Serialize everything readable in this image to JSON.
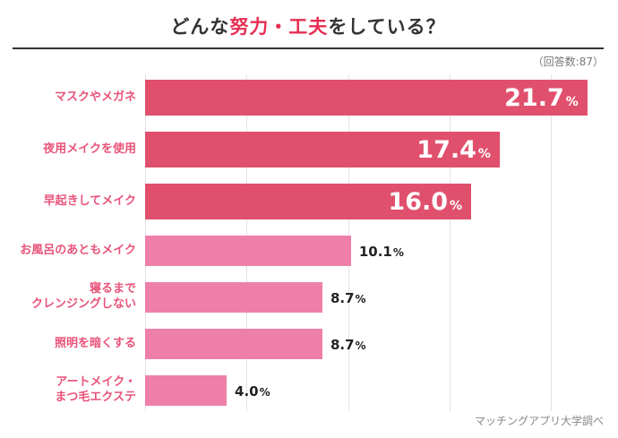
{
  "title": {
    "prefix": "どんな",
    "highlight": "努力・工夫",
    "suffix": "をしている？"
  },
  "response_count_label": "（回答数:87）",
  "source_label": "マッチングアプリ大学調べ",
  "colors": {
    "highlight_red": "#e62e52",
    "text_dark": "#333333",
    "divider": "#333333",
    "meta_gray": "#777777",
    "source_gray": "#888888",
    "bar_strong": "#e0506d",
    "bar_light": "#ee7fa8",
    "label_pink": "#e8537a",
    "grid": "#e3e3e3"
  },
  "chart_data": {
    "type": "bar",
    "orientation": "horizontal",
    "title": "どんな努力・工夫をしている？",
    "response_count": 87,
    "xlim": [
      0,
      22.5
    ],
    "gridlines": [
      0,
      5,
      10,
      15,
      20
    ],
    "grid": true,
    "legend": false,
    "categories": [
      "マスクやメガネ",
      "夜用メイクを使用",
      "早起きしてメイク",
      "お風呂のあともメイク",
      "寝るまで\nクレンジングしない",
      "照明を暗くする",
      "アートメイク・\nまつ毛エクステ"
    ],
    "values": [
      21.7,
      17.4,
      16.0,
      10.1,
      8.7,
      8.7,
      4.0
    ],
    "value_labels": [
      "21.7",
      "17.4",
      "16.0",
      "10.1",
      "8.7",
      "8.7",
      "4.0"
    ],
    "emphasis": [
      true,
      true,
      true,
      false,
      false,
      false,
      false
    ]
  }
}
